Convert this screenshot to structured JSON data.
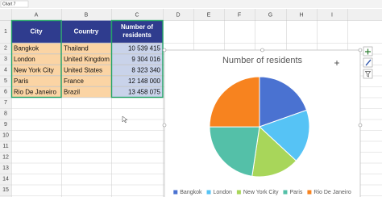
{
  "name_box": "Chart 7",
  "columns": [
    "A",
    "B",
    "C",
    "D",
    "E",
    "F",
    "G",
    "H",
    "I"
  ],
  "rows": [
    "1",
    "2",
    "3",
    "4",
    "5",
    "6",
    "7",
    "8",
    "9",
    "10",
    "11",
    "12",
    "13",
    "14",
    "15"
  ],
  "table": {
    "header": [
      "City",
      "Country",
      "Number of residents"
    ],
    "rows": [
      [
        "Bangkok",
        "Thailand",
        "10 539 415"
      ],
      [
        "London",
        "United Kingdom",
        "9 304 016"
      ],
      [
        "New York City",
        "United States",
        "8 323 340"
      ],
      [
        "Paris",
        "France",
        "12 148 000"
      ],
      [
        "Rio De Janeiro",
        "Brazil",
        "13 458 075"
      ]
    ]
  },
  "chart_data": {
    "type": "pie",
    "title": "Number of residents",
    "categories": [
      "Bangkok",
      "London",
      "New York City",
      "Paris",
      "Rio De Janeiro"
    ],
    "values": [
      10539415,
      9304016,
      8323340,
      12148000,
      13458075
    ],
    "colors": [
      "#4a72d1",
      "#56c3f5",
      "#a8d65a",
      "#54c0a8",
      "#f7831f"
    ],
    "legend": "bottom"
  }
}
